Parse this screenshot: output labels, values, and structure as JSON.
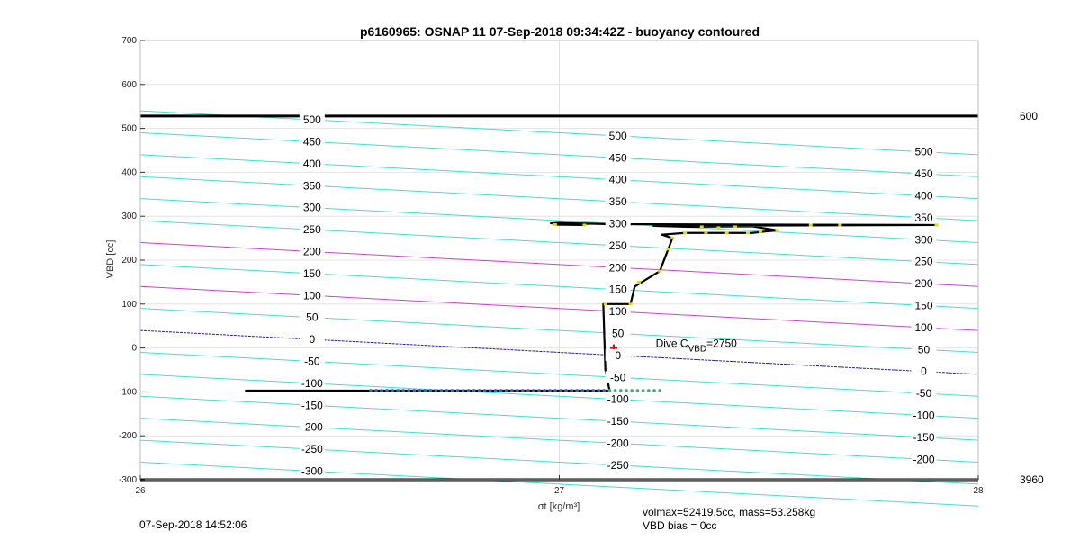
{
  "chart_data": {
    "type": "line",
    "title": "p6160965: OSNAP 11 07-Sep-2018 09:34:42Z - buoyancy contoured",
    "xlabel": "σt [kg/m³]",
    "ylabel": "VBD [cc]",
    "xlim": [
      26,
      28
    ],
    "ylim": [
      -300,
      700
    ],
    "xticks": [
      "26",
      "27",
      "28"
    ],
    "yticks": [
      "-300",
      "-200",
      "-100",
      "0",
      "100",
      "200",
      "300",
      "400",
      "500",
      "600",
      "700"
    ],
    "grid": true,
    "right_labels": [
      {
        "text": "600",
        "y": 528
      },
      {
        "text": "3960",
        "y": -300
      }
    ],
    "horizontal_lines": [
      {
        "y": 528,
        "color": "#000000"
      },
      {
        "y": -300,
        "color": "#000000"
      }
    ],
    "contours": {
      "slope_per_unit_x": -50,
      "series": [
        {
          "value": -300,
          "color": "#40e0d0"
        },
        {
          "value": -250,
          "color": "#40e0d0"
        },
        {
          "value": -200,
          "color": "#40e0d0"
        },
        {
          "value": -150,
          "color": "#40e0d0"
        },
        {
          "value": -100,
          "color": "#40e0d0"
        },
        {
          "value": -50,
          "color": "#40e0d0"
        },
        {
          "value": 0,
          "color": "#2020a0"
        },
        {
          "value": 50,
          "color": "#40e0d0"
        },
        {
          "value": 100,
          "color": "#cc44cc"
        },
        {
          "value": 150,
          "color": "#40e0d0"
        },
        {
          "value": 200,
          "color": "#cc44cc"
        },
        {
          "value": 250,
          "color": "#40e0d0"
        },
        {
          "value": 300,
          "color": "#40e0d0"
        },
        {
          "value": 350,
          "color": "#40e0d0"
        },
        {
          "value": 400,
          "color": "#40e0d0"
        },
        {
          "value": 450,
          "color": "#40e0d0"
        },
        {
          "value": 500,
          "color": "#40e0d0"
        }
      ],
      "label_sets": [
        {
          "x": 26.41,
          "labels": [
            "500",
            "450",
            "400",
            "350",
            "300",
            "250",
            "200",
            "150",
            "100",
            "50",
            "0",
            "-50",
            "-100",
            "-150",
            "-200",
            "-250",
            "-300"
          ]
        },
        {
          "x": 27.14,
          "labels": [
            "500",
            "450",
            "400",
            "350",
            "300",
            "250",
            "200",
            "150",
            "100",
            "50",
            "0",
            "-50",
            "-100",
            "-150",
            "-200",
            "-250"
          ]
        },
        {
          "x": 27.87,
          "labels": [
            "500",
            "450",
            "400",
            "350",
            "300",
            "250",
            "200",
            "150",
            "100",
            "50",
            "0",
            "-50",
            "-100",
            "-150",
            "-200"
          ]
        }
      ]
    },
    "trace": {
      "name": "",
      "color": "#000000",
      "points": [
        [
          26.25,
          -97
        ],
        [
          26.6,
          -97
        ],
        [
          27.0,
          -97
        ],
        [
          27.12,
          -97
        ],
        [
          27.11,
          -50
        ],
        [
          27.105,
          100
        ],
        [
          27.17,
          100
        ],
        [
          27.18,
          140
        ],
        [
          27.24,
          175
        ],
        [
          27.26,
          225
        ],
        [
          27.27,
          250
        ],
        [
          27.245,
          258
        ],
        [
          27.3,
          262
        ],
        [
          27.46,
          262
        ],
        [
          27.52,
          268
        ],
        [
          27.46,
          277
        ],
        [
          27.31,
          276
        ],
        [
          27.225,
          278
        ],
        [
          27.9,
          280
        ],
        [
          27.12,
          282
        ],
        [
          27.0,
          285
        ],
        [
          26.98,
          284
        ],
        [
          27.06,
          280
        ],
        [
          26.99,
          281
        ],
        [
          27.07,
          283
        ]
      ],
      "dots": [
        {
          "color": "#3a5fcd",
          "x_start": 26.55,
          "x_end": 27.12,
          "y": -97
        },
        {
          "color": "#3cb371",
          "x_start": 27.12,
          "x_end": 27.24,
          "y": -97
        },
        {
          "color": "#e6d800",
          "points": [
            [
              26.99,
              281
            ],
            [
              27.06,
              280
            ],
            [
              27.11,
              100
            ],
            [
              27.17,
              100
            ],
            [
              27.19,
              150
            ],
            [
              27.24,
              175
            ],
            [
              27.26,
              225
            ],
            [
              27.27,
              250
            ],
            [
              27.3,
              262
            ],
            [
              27.35,
              263
            ],
            [
              27.4,
              262
            ],
            [
              27.45,
              262
            ],
            [
              27.48,
              265
            ],
            [
              27.52,
              268
            ],
            [
              27.6,
              280
            ],
            [
              27.67,
              280
            ],
            [
              27.9,
              280
            ],
            [
              27.34,
              276
            ],
            [
              27.38,
              274
            ],
            [
              27.42,
              276
            ]
          ]
        }
      ]
    },
    "marker": {
      "x": 27.13,
      "y": 0,
      "color": "#dd0000"
    },
    "annotation": {
      "text": "Dive C",
      "subscript": "VBD",
      "suffix": "=2750",
      "x": 27.23,
      "y": 2
    },
    "footer": {
      "left": "07-Sep-2018 14:52:06",
      "right_line1": "volmax=52419.5cc, mass=53.258kg",
      "right_line2": "VBD bias = 0cc"
    }
  }
}
